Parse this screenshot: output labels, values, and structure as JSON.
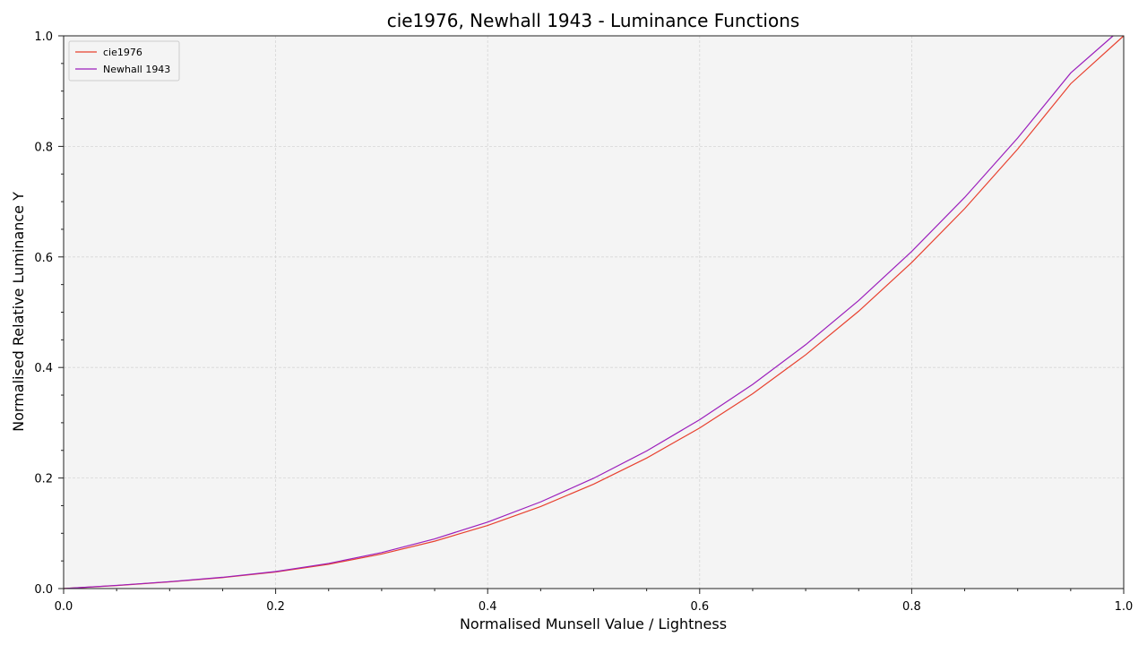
{
  "chart_data": {
    "type": "line",
    "title": "cie1976, Newhall 1943 - Luminance Functions",
    "xlabel": "Normalised Munsell Value / Lightness",
    "ylabel": "Normalised Relative Luminance Y",
    "xlim": [
      0,
      1
    ],
    "ylim": [
      0,
      1
    ],
    "xticks": [
      "0.0",
      "0.2",
      "0.4",
      "0.6",
      "0.8",
      "1.0"
    ],
    "yticks": [
      "0.0",
      "0.2",
      "0.4",
      "0.6",
      "0.8",
      "1.0"
    ],
    "grid": true,
    "legend_position": "top-left",
    "background_color": "#f4f4f4",
    "series": [
      {
        "name": "cie1976",
        "color": "#e8412f",
        "x": [
          0.0,
          0.05,
          0.1,
          0.15,
          0.2,
          0.25,
          0.3,
          0.35,
          0.4,
          0.45,
          0.5,
          0.55,
          0.6,
          0.65,
          0.7,
          0.75,
          0.8,
          0.85,
          0.9,
          0.95,
          1.0
        ],
        "y": [
          0.0,
          0.0055,
          0.0121,
          0.0199,
          0.0299,
          0.044,
          0.0625,
          0.0857,
          0.1142,
          0.1484,
          0.1889,
          0.2361,
          0.2905,
          0.3526,
          0.4229,
          0.5018,
          0.5898,
          0.6874,
          0.7951,
          0.9133,
          1.0
        ]
      },
      {
        "name": "Newhall 1943",
        "color": "#9c1fbc",
        "x": [
          0.0,
          0.05,
          0.1,
          0.15,
          0.2,
          0.25,
          0.3,
          0.35,
          0.4,
          0.45,
          0.5,
          0.55,
          0.6,
          0.65,
          0.7,
          0.75,
          0.8,
          0.85,
          0.9,
          0.95,
          0.99
        ],
        "y": [
          0.0,
          0.0058,
          0.0125,
          0.0204,
          0.0308,
          0.0455,
          0.0651,
          0.0899,
          0.1203,
          0.1568,
          0.1996,
          0.249,
          0.3055,
          0.3694,
          0.4412,
          0.5212,
          0.6099,
          0.7077,
          0.8152,
          0.9328,
          1.0
        ]
      }
    ]
  }
}
